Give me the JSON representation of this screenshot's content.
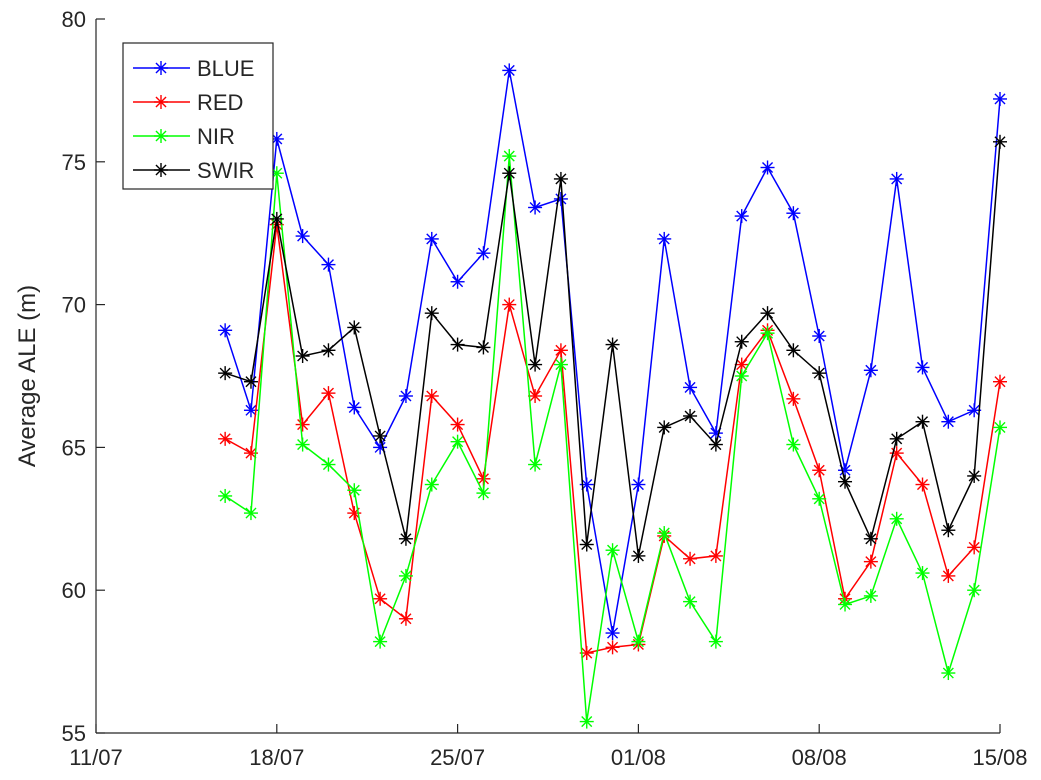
{
  "chart_data": {
    "type": "line",
    "ylabel": "Average ALE (m)",
    "xlabel": "",
    "ylim": [
      55,
      80
    ],
    "yticks": [
      55,
      60,
      65,
      70,
      75,
      80
    ],
    "xticks": [
      "11/07",
      "18/07",
      "25/07",
      "01/08",
      "08/08",
      "15/08"
    ],
    "grid": false,
    "legend_position": "top-left",
    "x": [
      "16/07",
      "17/07",
      "18/07",
      "19/07",
      "20/07",
      "21/07",
      "22/07",
      "23/07",
      "24/07",
      "25/07",
      "26/07",
      "27/07",
      "28/07",
      "29/07",
      "30/07",
      "31/07",
      "01/08",
      "02/08",
      "03/08",
      "04/08",
      "05/08",
      "06/08",
      "07/08",
      "08/08",
      "09/08",
      "10/08",
      "11/08",
      "12/08",
      "13/08",
      "14/08",
      "15/08"
    ],
    "series": [
      {
        "name": "BLUE",
        "color": "#0000ff",
        "values": [
          69.1,
          66.3,
          75.8,
          72.4,
          71.4,
          66.4,
          65.0,
          66.8,
          72.3,
          70.8,
          71.8,
          78.2,
          73.4,
          73.7,
          63.7,
          58.5,
          63.7,
          72.3,
          67.1,
          65.5,
          73.1,
          74.8,
          73.2,
          68.9,
          64.2,
          67.7,
          74.4,
          67.8,
          65.9,
          66.3,
          77.2
        ]
      },
      {
        "name": "RED",
        "color": "#ff0000",
        "values": [
          65.3,
          64.8,
          72.8,
          65.8,
          66.9,
          62.7,
          59.7,
          59.0,
          66.8,
          65.8,
          63.9,
          70.0,
          66.8,
          68.4,
          57.8,
          58.0,
          58.1,
          61.9,
          61.1,
          61.2,
          67.9,
          69.1,
          66.7,
          64.2,
          59.7,
          61.0,
          64.8,
          63.7,
          60.5,
          61.5,
          67.3
        ]
      },
      {
        "name": "NIR",
        "color": "#00ff00",
        "values": [
          63.3,
          62.7,
          74.6,
          65.1,
          64.4,
          63.5,
          58.2,
          60.5,
          63.7,
          65.2,
          63.4,
          75.2,
          64.4,
          67.9,
          55.4,
          61.4,
          58.2,
          62.0,
          59.6,
          58.2,
          67.5,
          69.0,
          65.1,
          63.2,
          59.5,
          59.8,
          62.5,
          60.6,
          57.1,
          60.0,
          65.7
        ]
      },
      {
        "name": "SWIR",
        "color": "#000000",
        "values": [
          67.6,
          67.3,
          73.0,
          68.2,
          68.4,
          69.2,
          65.4,
          61.8,
          69.7,
          68.6,
          68.5,
          74.6,
          67.9,
          74.4,
          61.6,
          68.6,
          61.2,
          65.7,
          66.1,
          65.1,
          68.7,
          69.7,
          68.4,
          67.6,
          63.8,
          61.8,
          65.3,
          65.9,
          62.1,
          64.0,
          75.7
        ]
      }
    ]
  }
}
